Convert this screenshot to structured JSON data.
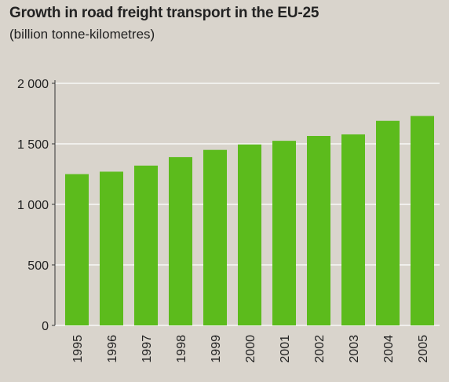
{
  "chart_data": {
    "type": "bar",
    "title": "Growth in road freight transport in the EU-25",
    "subtitle": "(billion tonne-kilometres)",
    "categories": [
      "1995",
      "1996",
      "1997",
      "1998",
      "1999",
      "2000",
      "2001",
      "2002",
      "2003",
      "2004",
      "2005"
    ],
    "values": [
      1250,
      1270,
      1320,
      1390,
      1450,
      1495,
      1525,
      1565,
      1578,
      1690,
      1730
    ],
    "yticks": [
      0,
      500,
      1000,
      1500,
      2000
    ],
    "ytick_labels": [
      "0",
      "500",
      "1 000",
      "1 500",
      "2 000"
    ],
    "ylim": [
      0,
      2000
    ],
    "xlabel": "",
    "ylabel": "",
    "grid": true,
    "colors": {
      "bar": "#5cbb1c",
      "grid": "#ffffff",
      "background": "#d9d4cc",
      "axis": "#333333"
    }
  }
}
